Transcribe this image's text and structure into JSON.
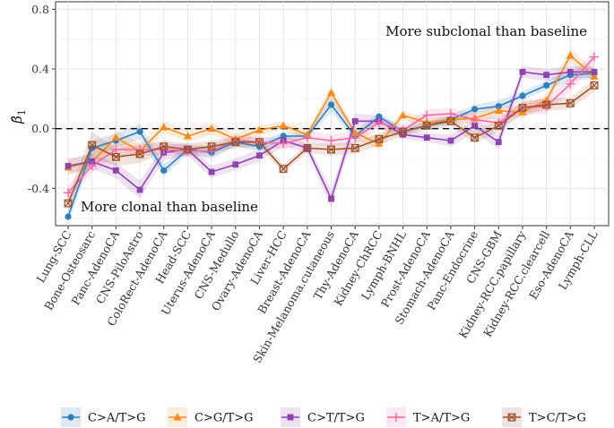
{
  "chart_data": {
    "type": "line",
    "ylabel": "β̂1",
    "ylabel_main": "β̂",
    "ylabel_sub": "1",
    "ylim": [
      -0.65,
      0.85
    ],
    "yticks": [
      -0.4,
      0.0,
      0.4,
      0.8
    ],
    "ytick_labels": [
      "-0.4",
      "0.0",
      "0.4",
      "0.8"
    ],
    "reference_line": 0.0,
    "grid": true,
    "legend_position": "bottom",
    "annotations": {
      "upper": "More subclonal than baseline",
      "lower": "More clonal than baseline"
    },
    "categories": [
      "Lung-SCC",
      "Bone-Osteosarc",
      "Panc-AdenoCA",
      "CNS-PiloAstro",
      "ColoRect-AdenoCA",
      "Head-SCC",
      "Uterus-AdenoCA",
      "CNS-Medullo",
      "Ovary-AdenoCA",
      "Liver-HCC",
      "Breast-AdenoCA",
      "Skin-Melanoma.cutaneous",
      "Thy-AdenoCA",
      "Kidney-ChRCC",
      "Lymph-BNHL",
      "Prost-AdenoCA",
      "Stomach-AdenoCA",
      "Panc-Endocrine",
      "CNS-GBM",
      "Kidney-RCC.papillary",
      "Kidney-RCC.clearcell",
      "Eso-AdenoCA",
      "Lymph-CLL"
    ],
    "series": [
      {
        "name": "C>A/T>G",
        "color": "#2e7fbf",
        "marker": "circle",
        "values": [
          -0.59,
          -0.13,
          -0.08,
          -0.02,
          -0.28,
          -0.14,
          -0.16,
          -0.09,
          -0.12,
          -0.05,
          -0.05,
          0.16,
          -0.05,
          0.08,
          -0.02,
          0.02,
          0.06,
          0.13,
          0.15,
          0.22,
          0.29,
          0.36,
          0.37
        ],
        "band": [
          0.05,
          0.05,
          0.05,
          0.05,
          0.04,
          0.03,
          0.04,
          0.03,
          0.03,
          0.03,
          0.02,
          0.05,
          0.03,
          0.03,
          0.02,
          0.02,
          0.03,
          0.03,
          0.04,
          0.03,
          0.03,
          0.04,
          0.04
        ]
      },
      {
        "name": "C>G/T>G",
        "color": "#f28a1c",
        "marker": "triangle",
        "values": [
          -0.26,
          -0.22,
          -0.06,
          -0.15,
          0.01,
          -0.05,
          0.0,
          -0.07,
          -0.01,
          0.02,
          -0.04,
          0.24,
          -0.03,
          -0.1,
          0.09,
          0.04,
          0.06,
          0.07,
          0.12,
          0.11,
          0.19,
          0.49,
          0.35
        ],
        "band": [
          0.05,
          0.05,
          0.05,
          0.05,
          0.04,
          0.04,
          0.04,
          0.04,
          0.03,
          0.03,
          0.03,
          0.05,
          0.04,
          0.04,
          0.03,
          0.03,
          0.03,
          0.04,
          0.04,
          0.04,
          0.04,
          0.05,
          0.04
        ]
      },
      {
        "name": "C>T/T>G",
        "color": "#8e44ad",
        "marker": "square",
        "values": [
          -0.25,
          -0.22,
          -0.28,
          -0.41,
          -0.16,
          -0.14,
          -0.29,
          -0.24,
          -0.18,
          -0.08,
          -0.13,
          -0.47,
          0.05,
          0.05,
          -0.04,
          -0.06,
          -0.08,
          0.02,
          -0.09,
          0.38,
          0.36,
          0.38,
          0.38
        ],
        "band": [
          0.05,
          0.05,
          0.05,
          0.06,
          0.05,
          0.04,
          0.04,
          0.04,
          0.04,
          0.04,
          0.03,
          0.06,
          0.05,
          0.04,
          0.03,
          0.03,
          0.04,
          0.04,
          0.05,
          0.04,
          0.04,
          0.04,
          0.04
        ]
      },
      {
        "name": "T>A/T>G",
        "color": "#f06ba8",
        "marker": "plus",
        "values": [
          -0.43,
          -0.25,
          -0.14,
          -0.14,
          -0.14,
          -0.15,
          -0.15,
          -0.08,
          -0.09,
          -0.1,
          -0.06,
          -0.08,
          -0.06,
          0.04,
          -0.01,
          0.09,
          0.1,
          0.06,
          0.04,
          0.14,
          0.15,
          0.3,
          0.48
        ],
        "band": [
          0.05,
          0.05,
          0.04,
          0.04,
          0.04,
          0.04,
          0.04,
          0.04,
          0.04,
          0.04,
          0.04,
          0.04,
          0.04,
          0.04,
          0.04,
          0.04,
          0.04,
          0.04,
          0.04,
          0.05,
          0.05,
          0.05,
          0.05
        ]
      },
      {
        "name": "T>C/T>G",
        "color": "#a0522d",
        "marker": "crossbox",
        "values": [
          -0.5,
          -0.11,
          -0.19,
          -0.17,
          -0.12,
          -0.14,
          -0.12,
          -0.09,
          -0.09,
          -0.27,
          -0.13,
          -0.14,
          -0.13,
          -0.07,
          -0.02,
          0.02,
          0.05,
          -0.06,
          0.02,
          0.14,
          0.16,
          0.17,
          0.29
        ],
        "band": [
          0.05,
          0.09,
          0.06,
          0.06,
          0.04,
          0.04,
          0.04,
          0.04,
          0.03,
          0.03,
          0.03,
          0.04,
          0.04,
          0.04,
          0.03,
          0.03,
          0.03,
          0.04,
          0.04,
          0.04,
          0.04,
          0.04,
          0.04
        ]
      }
    ]
  }
}
